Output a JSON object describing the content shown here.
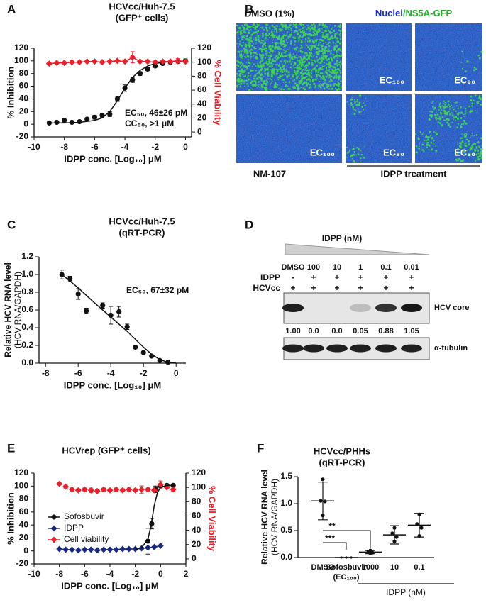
{
  "chart_data": [
    {
      "type": "line",
      "panel": "A",
      "title": [
        "HCVcc/Huh-7.5",
        "(GFP⁺ cells)"
      ],
      "xlabel": "IDPP conc. [Log₁₀] μM",
      "ylabel": "% Inhibition",
      "y2label": "% Cell Viability",
      "xlim": [
        -10,
        0.4
      ],
      "ylim": [
        -20,
        120
      ],
      "y2lim": [
        -7,
        120
      ],
      "xticks": [
        -10,
        -8,
        -6,
        -4,
        -2,
        0
      ],
      "yticks": [
        -20,
        0,
        20,
        40,
        60,
        80,
        100,
        120
      ],
      "y2ticks": [
        0,
        20,
        40,
        60,
        80,
        100,
        120
      ],
      "annotations": [
        "EC₅₀, 46±26 pM",
        "CC₅₀, >1 μM"
      ],
      "series": [
        {
          "color": "#111111",
          "mode": "markers",
          "marker": "circle",
          "x": [
            -9,
            -8.5,
            -8,
            -7.5,
            -7,
            -6.5,
            -6,
            -5.5,
            -5,
            -4.5,
            -4,
            -3.5,
            -3,
            -2.5,
            -2,
            -1.5,
            -1,
            -0.5,
            0
          ],
          "values": [
            2,
            3,
            6,
            3,
            4,
            8,
            11,
            14,
            16,
            40,
            57,
            70,
            80,
            87,
            92,
            96,
            98,
            99,
            100
          ],
          "errors": [
            1,
            1,
            1,
            1,
            2,
            2,
            3,
            3,
            4,
            4,
            5,
            4,
            3,
            2,
            2,
            1,
            1,
            1,
            3
          ]
        },
        {
          "color": "#111111",
          "mode": "line",
          "x": [
            -9,
            -8,
            -7,
            -6,
            -5.5,
            -5,
            -4.5,
            -4,
            -3.5,
            -3,
            -2.5,
            -2,
            -1,
            0
          ],
          "values": [
            2,
            2,
            3,
            6,
            10,
            20,
            37,
            57,
            74,
            85,
            92,
            96,
            99,
            100
          ]
        },
        {
          "color": "#e8202a",
          "mode": "both",
          "marker": "diamond",
          "axis": "y2",
          "x": [
            -9,
            -8.5,
            -8,
            -7.5,
            -7,
            -6.5,
            -6,
            -5.5,
            -5,
            -4.5,
            -4,
            -3.5,
            -3,
            -2.5,
            -2,
            -1.5,
            -1,
            -0.5,
            0
          ],
          "values": [
            98,
            99,
            99,
            100,
            100,
            101,
            101,
            100,
            101,
            102,
            101,
            107,
            101,
            101,
            100,
            101,
            101,
            102,
            101
          ],
          "errors": [
            1,
            1,
            1,
            1,
            1,
            1,
            1,
            1,
            1,
            1,
            1,
            8,
            1,
            1,
            1,
            1,
            1,
            3,
            2
          ]
        }
      ]
    },
    {
      "type": "line",
      "panel": "C",
      "title": [
        "HCVcc/Huh-7.5",
        "(qRT-PCR)"
      ],
      "xlabel": "IDPP conc. [Log₁₀] μM",
      "ylabel": [
        "Relative HCV RNA level",
        "(HCV RNA/GAPDH)"
      ],
      "xlim": [
        -8.4,
        0.6
      ],
      "ylim": [
        0,
        1.2
      ],
      "xticks": [
        -8,
        -6,
        -4,
        -2,
        0
      ],
      "yticks": [
        {
          "value": 0,
          "label": "0.0"
        },
        0.2,
        0.4,
        0.6,
        0.8,
        {
          "value": 1,
          "label": "1.0"
        },
        1.2
      ],
      "annotations": [
        "EC₅₀, 67±32 pM"
      ],
      "series": [
        {
          "color": "#111111",
          "mode": "markers",
          "marker": "circle",
          "x": [
            -7,
            -6.5,
            -6,
            -5.5,
            -4.5,
            -4,
            -3.5,
            -3,
            -2.5,
            -2,
            -1.5,
            -1,
            -0.5
          ],
          "values": [
            1.0,
            0.95,
            0.78,
            0.59,
            0.65,
            0.54,
            0.58,
            0.41,
            0.18,
            0.12,
            0.08,
            0.03,
            0.01
          ],
          "errors": [
            0.05,
            0.03,
            0.06,
            0.03,
            0.03,
            0.1,
            0.06,
            0.03,
            0.01,
            0.01,
            0.01,
            0.01,
            0.01
          ]
        },
        {
          "color": "#111111",
          "mode": "line",
          "x": [
            -7,
            -6,
            -5,
            -4,
            -3,
            -2,
            -1.5,
            -1,
            -0.5,
            0
          ],
          "values": [
            1.0,
            0.85,
            0.68,
            0.52,
            0.36,
            0.18,
            0.1,
            0.04,
            0.01,
            0
          ]
        }
      ]
    },
    {
      "type": "line",
      "panel": "E",
      "title": [
        "HCVrep (GFP⁺ cells)"
      ],
      "xlabel": "IDPP conc. [Log₁₀] μM",
      "ylabel": "% Inhibition",
      "y2label": "% Cell Viability",
      "xlim": [
        -10,
        2
      ],
      "ylim": [
        -20,
        120
      ],
      "y2lim": [
        -7,
        120
      ],
      "xticks": [
        -10,
        -8,
        -6,
        -4,
        -2,
        0,
        2
      ],
      "yticks": [
        -20,
        0,
        20,
        40,
        60,
        80,
        100,
        120
      ],
      "y2ticks": [
        0,
        20,
        40,
        60,
        80,
        100,
        120
      ],
      "legend": "center-left",
      "series": [
        {
          "name": "Sofosbuvir",
          "color": "#111111",
          "mode": "markers",
          "marker": "circle",
          "x": [
            -1,
            -0.7,
            -0.4,
            0,
            0.5,
            1
          ],
          "values": [
            15,
            42,
            95,
            100,
            101,
            101
          ],
          "errors": [
            20,
            8,
            5,
            2,
            1,
            1
          ]
        },
        {
          "name": "IDPP",
          "color": "#1a2a80",
          "mode": "both",
          "marker": "diamond",
          "x": [
            -8,
            -7.5,
            -7,
            -6.5,
            -6,
            -5.5,
            -5,
            -4.5,
            -4,
            -3.5,
            -3,
            -2.5,
            -2,
            -1.5,
            -1,
            -0.5,
            0
          ],
          "values": [
            3,
            2,
            2,
            1,
            2,
            2,
            1,
            2,
            2,
            2,
            3,
            3,
            3,
            4,
            5,
            6,
            8
          ]
        },
        {
          "name": "Cell viability",
          "color": "#e8202a",
          "mode": "markers",
          "marker": "diamond",
          "axis": "y2",
          "x": [
            -8,
            -7.5,
            -7,
            -6.5,
            -6,
            -5.5,
            -5,
            -4.5,
            -4,
            -3.5,
            -3,
            -2.5,
            -2,
            -1.5,
            -1,
            -0.5,
            0,
            0.5,
            1
          ],
          "values": [
            105,
            101,
            97,
            96,
            97,
            96,
            95,
            97,
            96,
            97,
            96,
            97,
            96,
            97,
            97,
            96,
            104,
            100,
            97
          ],
          "errors": [
            1,
            2,
            2,
            2,
            2,
            3,
            2,
            2,
            2,
            2,
            2,
            2,
            2,
            5,
            2,
            2,
            5,
            2,
            2
          ]
        },
        {
          "color": "#111111",
          "mode": "line",
          "x": [
            -2,
            -1.5,
            -1,
            -0.75,
            -0.5,
            -0.25,
            0,
            0.5,
            1
          ],
          "values": [
            2,
            5,
            18,
            40,
            70,
            90,
            98,
            101,
            101
          ]
        }
      ]
    },
    {
      "type": "dot-plot",
      "panel": "F",
      "title": [
        "HCVcc/PHHs",
        "(qRT-PCR)"
      ],
      "ylabel": [
        "Relative HCV RNA level",
        "(HCV RNA/GAPDH)"
      ],
      "ylim": [
        0,
        1.5
      ],
      "yticks": [
        {
          "value": 0,
          "label": "0.0"
        },
        0.5,
        {
          "value": 1,
          "label": "1.0"
        },
        1.5
      ],
      "categories": [
        "DMSO",
        "Sofosbuvir",
        "1000",
        "10",
        "0.1"
      ],
      "category_notes": [
        null,
        "(EC₁₀₀)",
        null,
        null,
        null
      ],
      "group_label": "IDPP (nM)",
      "significance": [
        "**",
        "***"
      ],
      "color": "#111111",
      "points": [
        [
          1.45,
          1.05,
          1.04,
          0.78
        ],
        [
          0,
          0,
          0,
          0
        ],
        [
          0.13,
          0.1,
          0.09,
          0.08
        ],
        [
          0.55,
          0.45,
          0.38,
          0.3
        ],
        [
          0.8,
          0.62,
          0.55,
          0.4
        ]
      ],
      "means": [
        1.05,
        0,
        0.1,
        0.42,
        0.6
      ],
      "sd": [
        0.35,
        0,
        0.03,
        0.17,
        0.22
      ]
    }
  ],
  "panel_b": {
    "panel": "B",
    "header": "DMSO (1%)",
    "stain": [
      "Nuclei",
      "/NS5A-GFP"
    ],
    "image_labels": [
      "EC₁₀₀",
      "EC₉₀",
      "EC₁₀₀",
      "EC₈₀",
      "EC₅₀"
    ],
    "footer": [
      "NM-107",
      "IDPP treatment"
    ]
  },
  "panel_d": {
    "panel": "D",
    "treatment": "IDPP (nM)",
    "lanes": [
      "DMSO",
      "100",
      "10",
      "1",
      "0.1",
      "0.01"
    ],
    "rows": [
      {
        "label": "IDPP",
        "marks": [
          "-",
          "+",
          "+",
          "+",
          "+",
          "+"
        ]
      },
      {
        "label": "HCVcc",
        "marks": [
          "+",
          "+",
          "+",
          "+",
          "+",
          "+"
        ]
      }
    ],
    "bands": [
      {
        "label": "HCV core",
        "quantification": [
          "1.00",
          "0.0",
          "0.0",
          "0.05",
          "0.88",
          "1.05"
        ]
      },
      {
        "label": "α-tubulin"
      }
    ]
  }
}
